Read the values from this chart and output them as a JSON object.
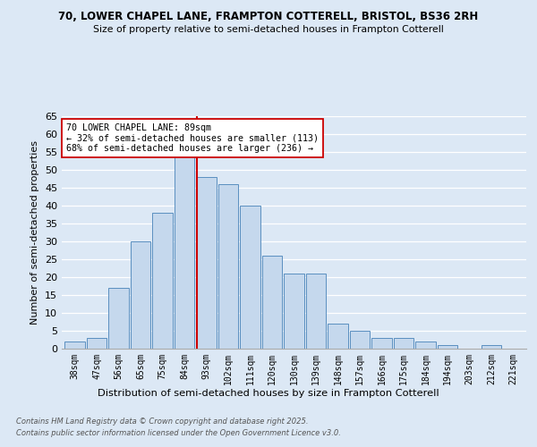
{
  "title1": "70, LOWER CHAPEL LANE, FRAMPTON COTTERELL, BRISTOL, BS36 2RH",
  "title2": "Size of property relative to semi-detached houses in Frampton Cotterell",
  "xlabel": "Distribution of semi-detached houses by size in Frampton Cotterell",
  "ylabel": "Number of semi-detached properties",
  "categories": [
    "38sqm",
    "47sqm",
    "56sqm",
    "65sqm",
    "75sqm",
    "84sqm",
    "93sqm",
    "102sqm",
    "111sqm",
    "120sqm",
    "130sqm",
    "139sqm",
    "148sqm",
    "157sqm",
    "166sqm",
    "175sqm",
    "184sqm",
    "194sqm",
    "203sqm",
    "212sqm",
    "221sqm"
  ],
  "values": [
    2,
    3,
    17,
    30,
    38,
    54,
    48,
    46,
    40,
    26,
    21,
    21,
    7,
    5,
    3,
    3,
    2,
    1,
    0,
    1,
    0
  ],
  "bar_color": "#c5d8ed",
  "bar_edge_color": "#5a8fc0",
  "vline_color": "#cc0000",
  "annotation_title": "70 LOWER CHAPEL LANE: 89sqm",
  "annotation_line1": "← 32% of semi-detached houses are smaller (113)",
  "annotation_line2": "68% of semi-detached houses are larger (236) →",
  "annotation_box_color": "#ffffff",
  "annotation_box_edge": "#cc0000",
  "footer1": "Contains HM Land Registry data © Crown copyright and database right 2025.",
  "footer2": "Contains public sector information licensed under the Open Government Licence v3.0.",
  "ylim": [
    0,
    65
  ],
  "background_color": "#dce8f5",
  "plot_background": "#dce8f5",
  "grid_color": "#ffffff"
}
